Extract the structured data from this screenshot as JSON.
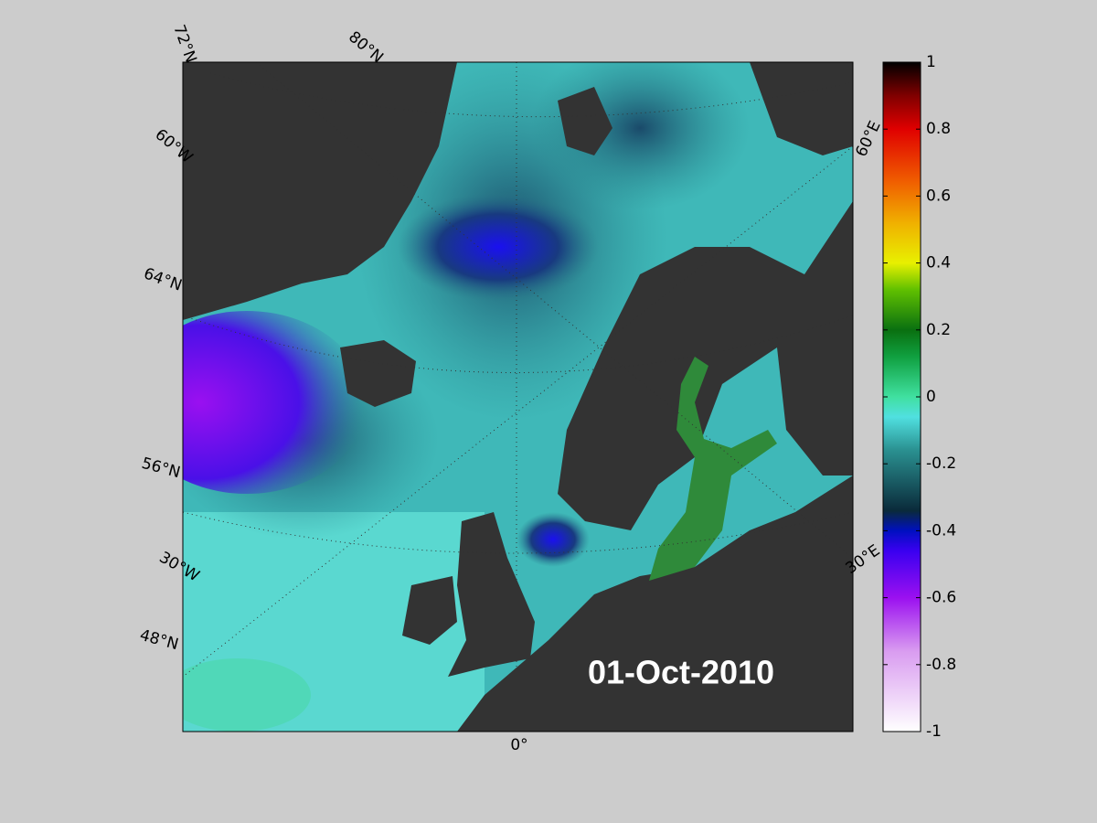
{
  "map": {
    "date_label": "01-Oct-2010",
    "graticule_labels": [
      "72°N",
      "80°N",
      "60°W",
      "64°N",
      "56°N",
      "30°W",
      "48°N",
      "0°",
      "60°E",
      "30°E"
    ]
  },
  "colorbar": {
    "lim": [
      -1,
      1
    ],
    "ticks": [
      1,
      0.8,
      0.6,
      0.4,
      0.2,
      0,
      -0.2,
      -0.4,
      -0.6,
      -0.8,
      -1
    ]
  }
}
